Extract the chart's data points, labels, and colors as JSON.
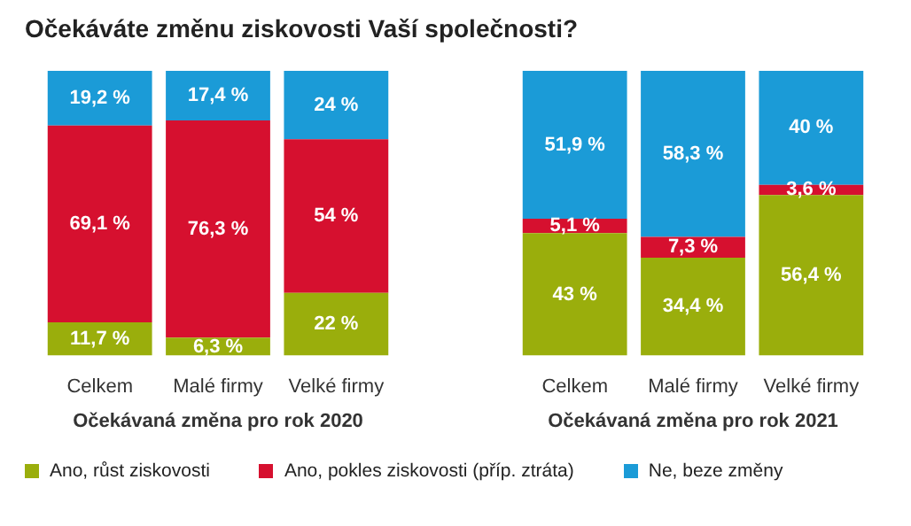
{
  "chart_data": [
    {
      "type": "bar",
      "title": "Očekáváte změnu ziskovosti Vaší společnosti?",
      "xlabel": "Očekávaná změna pro rok 2020",
      "categories": [
        "Celkem",
        "Malé firmy",
        "Velké firmy"
      ],
      "stacked": true,
      "tick_labels": "x",
      "grid": false,
      "legend": "bottom",
      "series": [
        {
          "name": "Ano, růst ziskovosti",
          "color": "#9aae0c",
          "values": [
            11.7,
            6.3,
            22
          ],
          "value_labels": [
            "11,7 %",
            "6,3 %",
            "22 %"
          ]
        },
        {
          "name": "Ano, pokles ziskovosti (příp. ztráta)",
          "color": "#d6102f",
          "values": [
            69.1,
            76.3,
            54
          ],
          "value_labels": [
            "69,1 %",
            "76,3 %",
            "54 %"
          ]
        },
        {
          "name": "Ne, beze změny",
          "color": "#1b9bd7",
          "values": [
            19.2,
            17.4,
            24
          ],
          "value_labels": [
            "19,2 %",
            "17,4 %",
            "24 %"
          ]
        }
      ]
    },
    {
      "type": "bar",
      "xlabel": "Očekávaná změna pro rok 2021",
      "categories": [
        "Celkem",
        "Malé firmy",
        "Velké firmy"
      ],
      "stacked": true,
      "tick_labels": "x",
      "grid": false,
      "series": [
        {
          "color": "#9aae0c",
          "values": [
            43,
            34.4,
            56.4
          ],
          "value_labels": [
            "43 %",
            "34,4 %",
            "56,4 %"
          ]
        },
        {
          "color": "#d6102f",
          "values": [
            5.1,
            7.3,
            3.6
          ],
          "value_labels": [
            "5,1 %",
            "7,3 %",
            "3,6 %"
          ]
        },
        {
          "color": "#1b9bd7",
          "values": [
            51.9,
            58.3,
            40
          ],
          "value_labels": [
            "51,9 %",
            "58,3 %",
            "40 %"
          ]
        }
      ]
    }
  ]
}
